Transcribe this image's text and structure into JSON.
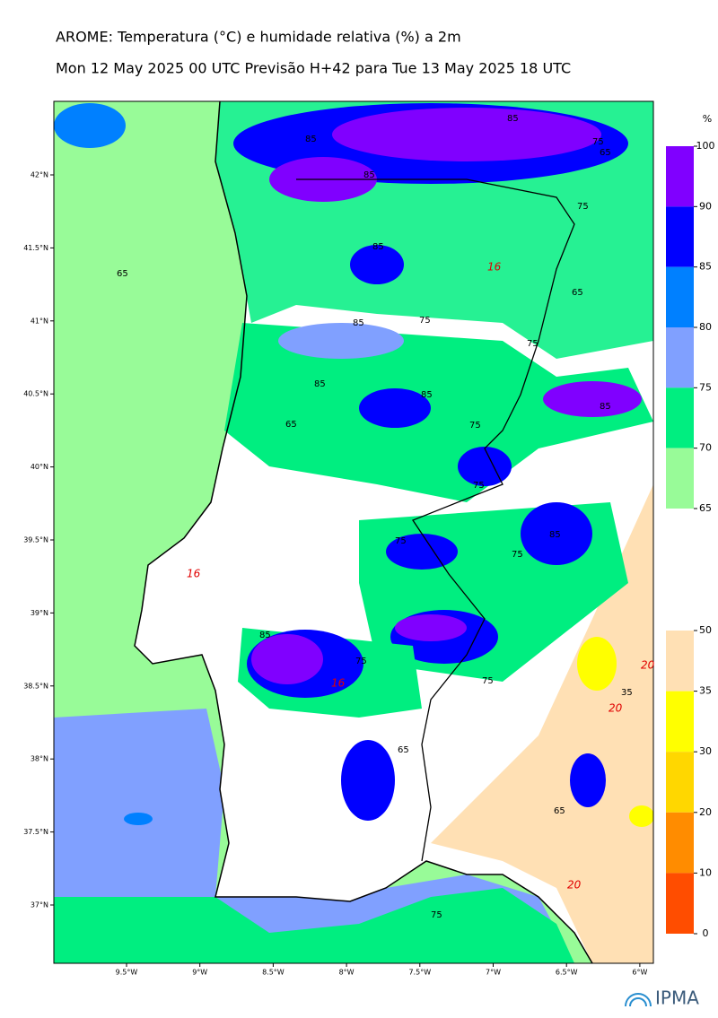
{
  "header": {
    "title": "AROME: Temperatura (°C) e humidade relativa (%) a 2m",
    "subtitle": "Mon 12 May 2025 00 UTC Previsão H+42 para Tue 13 May 2025 18 UTC"
  },
  "map": {
    "lon_labels": [
      "9.5°W",
      "9°W",
      "8.5°W",
      "8°W",
      "7.5°W",
      "7°W",
      "6.5°W",
      "6°W"
    ],
    "lat_labels": [
      "42°N",
      "41.5°N",
      "41°N",
      "40.5°N",
      "40°N",
      "39.5°N",
      "39°N",
      "38.5°N",
      "38°N",
      "37.5°N",
      "37°N"
    ],
    "contour_labels": [
      "85",
      "85",
      "85",
      "75",
      "65",
      "65",
      "75",
      "85",
      "85",
      "75",
      "75",
      "85",
      "65",
      "65",
      "75",
      "85",
      "75",
      "85",
      "75",
      "85",
      "75",
      "85",
      "75",
      "75",
      "65",
      "65",
      "75",
      "16",
      "16",
      "16",
      "20",
      "20",
      "35",
      "20"
    ]
  },
  "legend": {
    "humidity": {
      "unit": "%",
      "ticks": [
        100,
        90,
        85,
        80,
        75,
        70,
        65
      ],
      "colors": [
        "#8000ff",
        "#0000ff",
        "#0080ff",
        "#80a0ff",
        "#00ee80",
        "#98fb98"
      ]
    },
    "temperature": {
      "ticks": [
        50,
        35,
        30,
        20,
        10,
        0
      ],
      "colors": [
        "#ffe0b4",
        "#ffff00",
        "#ffd700",
        "#ff8c00",
        "#ff4d00"
      ]
    }
  },
  "footer": {
    "logo": "IPMA"
  }
}
